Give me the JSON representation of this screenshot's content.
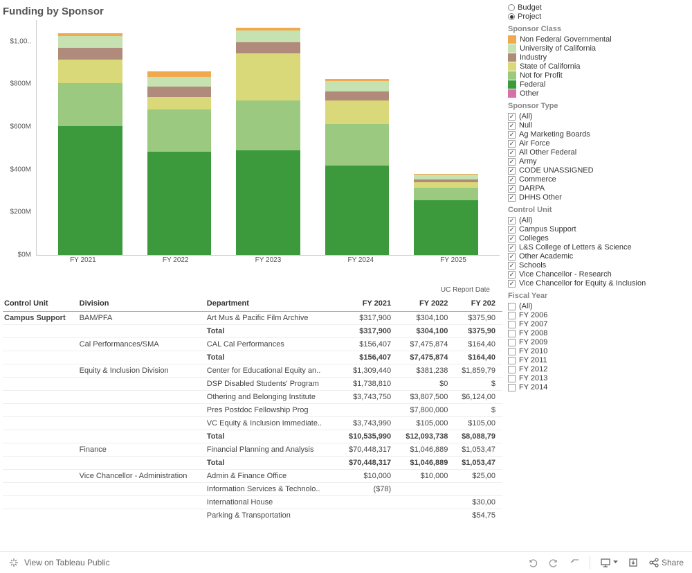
{
  "title": "Funding by Sponsor",
  "chart": {
    "type": "stacked-bar",
    "background": "#ffffff",
    "ylim": [
      0,
      1100
    ],
    "yticks": [
      {
        "v": 0,
        "label": "$0M"
      },
      {
        "v": 200,
        "label": "$200M"
      },
      {
        "v": 400,
        "label": "$400M"
      },
      {
        "v": 600,
        "label": "$600M"
      },
      {
        "v": 800,
        "label": "$800M"
      },
      {
        "v": 1000,
        "label": "$1,00.."
      }
    ],
    "categories": [
      "FY 2021",
      "FY 2022",
      "FY 2023",
      "FY 2024",
      "FY 2025"
    ],
    "series_order": [
      "Federal",
      "Not for Profit",
      "State of California",
      "Industry",
      "University of California",
      "Non Federal Governmental",
      "Other"
    ],
    "colors": {
      "Federal": "#3c9a3c",
      "Not for Profit": "#9ac97f",
      "State of California": "#d9d97a",
      "Industry": "#b08a7a",
      "University of California": "#c6e2b1",
      "Non Federal Governmental": "#f0a94e",
      "Other": "#d770a8"
    },
    "data": {
      "FY 2021": {
        "Federal": 605,
        "Not for Profit": 200,
        "State of California": 110,
        "Industry": 55,
        "University of California": 55,
        "Non Federal Governmental": 15,
        "Other": 0
      },
      "FY 2022": {
        "Federal": 485,
        "Not for Profit": 195,
        "State of California": 60,
        "Industry": 50,
        "University of California": 45,
        "Non Federal Governmental": 25,
        "Other": 0
      },
      "FY 2023": {
        "Federal": 490,
        "Not for Profit": 235,
        "State of California": 220,
        "Industry": 50,
        "University of California": 55,
        "Non Federal Governmental": 15,
        "Other": 0
      },
      "FY 2024": {
        "Federal": 420,
        "Not for Profit": 195,
        "State of California": 110,
        "Industry": 40,
        "University of California": 50,
        "Non Federal Governmental": 8,
        "Other": 0
      },
      "FY 2025": {
        "Federal": 255,
        "Not for Profit": 60,
        "State of California": 25,
        "Industry": 15,
        "University of California": 20,
        "Non Federal Governmental": 5,
        "Other": 0
      }
    }
  },
  "view_toggle": {
    "options": [
      "Budget",
      "Project"
    ],
    "selected": "Project"
  },
  "legend": {
    "title": "Sponsor Class",
    "items": [
      {
        "label": "Non Federal Governmental",
        "color": "#f0a94e"
      },
      {
        "label": "University of California",
        "color": "#c6e2b1"
      },
      {
        "label": "Industry",
        "color": "#b08a7a"
      },
      {
        "label": "State of California",
        "color": "#d9d97a"
      },
      {
        "label": "Not for Profit",
        "color": "#9ac97f"
      },
      {
        "label": "Federal",
        "color": "#3c9a3c"
      },
      {
        "label": "Other",
        "color": "#d770a8"
      }
    ]
  },
  "filters": {
    "sponsor_type": {
      "title": "Sponsor Type",
      "items": [
        {
          "label": "(All)",
          "checked": true
        },
        {
          "label": "Null",
          "checked": true
        },
        {
          "label": "Ag Marketing Boards",
          "checked": true
        },
        {
          "label": "Air Force",
          "checked": true
        },
        {
          "label": "All Other Federal",
          "checked": true
        },
        {
          "label": "Army",
          "checked": true
        },
        {
          "label": "CODE UNASSIGNED",
          "checked": true
        },
        {
          "label": "Commerce",
          "checked": true
        },
        {
          "label": "DARPA",
          "checked": true
        },
        {
          "label": "DHHS Other",
          "checked": true
        }
      ]
    },
    "control_unit": {
      "title": "Control Unit",
      "items": [
        {
          "label": "(All)",
          "checked": true
        },
        {
          "label": "Campus Support",
          "checked": true
        },
        {
          "label": "Colleges",
          "checked": true
        },
        {
          "label": "L&S College of Letters & Science",
          "checked": true
        },
        {
          "label": "Other Academic",
          "checked": true
        },
        {
          "label": "Schools",
          "checked": true
        },
        {
          "label": "Vice Chancellor - Research",
          "checked": true
        },
        {
          "label": "Vice Chancellor for Equity & Inclusion",
          "checked": true
        }
      ]
    },
    "fiscal_year": {
      "title": "Fiscal Year",
      "items": [
        {
          "label": "(All)",
          "checked": false
        },
        {
          "label": "FY 2006",
          "checked": false
        },
        {
          "label": "FY 2007",
          "checked": false
        },
        {
          "label": "FY 2008",
          "checked": false
        },
        {
          "label": "FY 2009",
          "checked": false
        },
        {
          "label": "FY 2010",
          "checked": false
        },
        {
          "label": "FY 2011",
          "checked": false
        },
        {
          "label": "FY 2012",
          "checked": false
        },
        {
          "label": "FY 2013",
          "checked": false
        },
        {
          "label": "FY 2014",
          "checked": false
        }
      ]
    }
  },
  "table": {
    "note": "UC Report Date",
    "columns": [
      "Control Unit",
      "Division",
      "Department",
      "FY 2021",
      "FY 2022",
      "FY 202"
    ],
    "rows": [
      {
        "cu": "Campus Support",
        "cu_bold": true,
        "div": "BAM/PFA",
        "dept": "Art Mus & Pacific Film Archive",
        "c1": "$317,900",
        "c2": "$304,100",
        "c3": "$375,90"
      },
      {
        "cu": "",
        "div": "",
        "dept": "Total",
        "bold": true,
        "c1": "$317,900",
        "c2": "$304,100",
        "c3": "$375,90"
      },
      {
        "cu": "",
        "div": "Cal Performances/SMA",
        "dept": "CAL Cal Performances",
        "c1": "$156,407",
        "c2": "$7,475,874",
        "c3": "$164,40"
      },
      {
        "cu": "",
        "div": "",
        "dept": "Total",
        "bold": true,
        "c1": "$156,407",
        "c2": "$7,475,874",
        "c3": "$164,40"
      },
      {
        "cu": "",
        "div": "Equity & Inclusion Division",
        "dept": "Center for Educational Equity an..",
        "c1": "$1,309,440",
        "c2": "$381,238",
        "c3": "$1,859,79"
      },
      {
        "cu": "",
        "div": "",
        "dept": "DSP Disabled Students' Program",
        "c1": "$1,738,810",
        "c2": "$0",
        "c3": "$"
      },
      {
        "cu": "",
        "div": "",
        "dept": "Othering and Belonging Institute",
        "c1": "$3,743,750",
        "c2": "$3,807,500",
        "c3": "$6,124,00"
      },
      {
        "cu": "",
        "div": "",
        "dept": "Pres Postdoc Fellowship Prog",
        "c1": "",
        "c2": "$7,800,000",
        "c3": "$"
      },
      {
        "cu": "",
        "div": "",
        "dept": "VC Equity & Inclusion Immediate..",
        "c1": "$3,743,990",
        "c2": "$105,000",
        "c3": "$105,00"
      },
      {
        "cu": "",
        "div": "",
        "dept": "Total",
        "bold": true,
        "c1": "$10,535,990",
        "c2": "$12,093,738",
        "c3": "$8,088,79"
      },
      {
        "cu": "",
        "div": "Finance",
        "dept": "Financial Planning and Analysis",
        "c1": "$70,448,317",
        "c2": "$1,046,889",
        "c3": "$1,053,47"
      },
      {
        "cu": "",
        "div": "",
        "dept": "Total",
        "bold": true,
        "c1": "$70,448,317",
        "c2": "$1,046,889",
        "c3": "$1,053,47"
      },
      {
        "cu": "",
        "div": "Vice Chancellor - Administration",
        "dept": "Admin & Finance Office",
        "c1": "$10,000",
        "c2": "$10,000",
        "c3": "$25,00"
      },
      {
        "cu": "",
        "div": "",
        "dept": "Information Services & Technolo..",
        "c1": "($78)",
        "c2": "",
        "c3": ""
      },
      {
        "cu": "",
        "div": "",
        "dept": "International House",
        "c1": "",
        "c2": "",
        "c3": "$30,00"
      },
      {
        "cu": "",
        "div": "",
        "dept": "Parking & Transportation",
        "c1": "",
        "c2": "",
        "c3": "$54,75"
      }
    ]
  },
  "footer": {
    "view": "View on Tableau Public",
    "share": "Share"
  }
}
